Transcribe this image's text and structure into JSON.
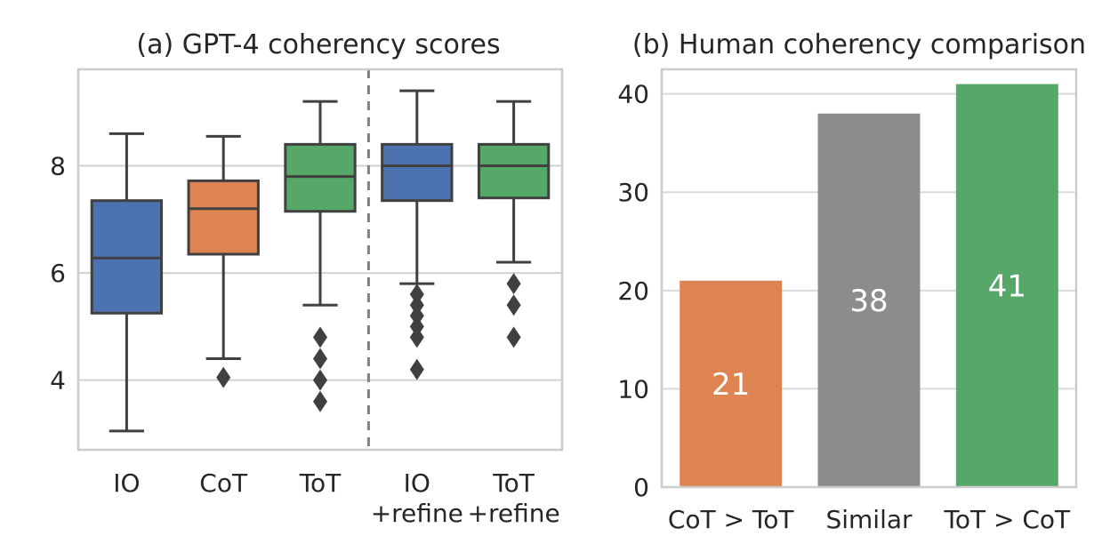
{
  "chart_data": [
    {
      "id": "a",
      "type": "box",
      "title": "(a) GPT-4 coherency scores",
      "xlabel": "",
      "ylabel": "",
      "ylim": [
        2.7,
        9.8
      ],
      "yticks": [
        4,
        6,
        8
      ],
      "grid": true,
      "divider_after_index": 2,
      "categories": [
        "IO",
        "CoT",
        "ToT",
        "IO\n+refine",
        "ToT\n+refine"
      ],
      "boxes": [
        {
          "label": "IO",
          "color": "#4c72b0",
          "whisker_low": 3.05,
          "q1": 5.25,
          "median": 6.28,
          "q3": 7.35,
          "whisker_high": 8.6,
          "outliers": []
        },
        {
          "label": "CoT",
          "color": "#dd8452",
          "whisker_low": 4.4,
          "q1": 6.35,
          "median": 7.2,
          "q3": 7.72,
          "whisker_high": 8.55,
          "outliers": [
            4.05
          ]
        },
        {
          "label": "ToT",
          "color": "#55a868",
          "whisker_low": 5.4,
          "q1": 7.15,
          "median": 7.8,
          "q3": 8.4,
          "whisker_high": 9.2,
          "outliers": [
            4.8,
            4.4,
            4.0,
            3.6
          ]
        },
        {
          "label": "IO +refine",
          "color": "#4c72b0",
          "whisker_low": 5.8,
          "q1": 7.35,
          "median": 8.0,
          "q3": 8.4,
          "whisker_high": 9.4,
          "outliers": [
            5.6,
            5.4,
            5.2,
            5.0,
            4.8,
            4.2
          ]
        },
        {
          "label": "ToT +refine",
          "color": "#55a868",
          "whisker_low": 6.2,
          "q1": 7.4,
          "median": 8.0,
          "q3": 8.4,
          "whisker_high": 9.2,
          "outliers": [
            5.8,
            5.4,
            4.8
          ]
        }
      ]
    },
    {
      "id": "b",
      "type": "bar",
      "title": "(b) Human coherency comparison",
      "xlabel": "",
      "ylabel": "",
      "ylim": [
        0,
        42.5
      ],
      "yticks": [
        0,
        10,
        20,
        30,
        40
      ],
      "grid": true,
      "categories": [
        "CoT > ToT",
        "Similar",
        "ToT > CoT"
      ],
      "values": [
        21,
        38,
        41
      ],
      "colors": [
        "#dd8452",
        "#8c8c8c",
        "#55a868"
      ],
      "value_labels": [
        "21",
        "38",
        "41"
      ]
    }
  ]
}
